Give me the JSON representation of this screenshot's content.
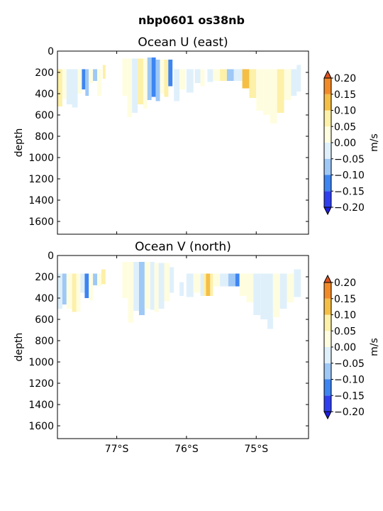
{
  "figure": {
    "suptitle": "nbp0601 os38nb"
  },
  "colors": {
    "levels": [
      -0.2,
      -0.15,
      -0.1,
      -0.05,
      0.0,
      0.05,
      0.1,
      0.15,
      0.2
    ],
    "bands": [
      "#2f3ff0",
      "#3d85f2",
      "#9ec8f6",
      "#dff0fb",
      "#fffde0",
      "#fdf0a8",
      "#f5be45",
      "#f38a28"
    ],
    "under": "#1e1ee0",
    "over": "#e0521e"
  },
  "chart_data": [
    {
      "type": "heatmap",
      "title": "Ocean U (east)",
      "xlabel": "",
      "ylabel": "depth",
      "xlim": [
        -77.85,
        -74.25
      ],
      "ylim": [
        1720,
        0
      ],
      "x_ticks": [
        -77,
        -76,
        -75
      ],
      "x_tick_labels": [
        "77°S",
        "76°S",
        "75°S"
      ],
      "y_ticks": [
        0,
        200,
        400,
        600,
        800,
        1000,
        1200,
        1400,
        1600
      ],
      "y_tick_labels": [
        "0",
        "200",
        "400",
        "600",
        "800",
        "1000",
        "1200",
        "1400",
        "1600"
      ],
      "colorbar": {
        "label": "m/s",
        "ticks": [
          "0.20",
          "0.15",
          "0.10",
          "0.05",
          "0.00",
          "−0.05",
          "−0.10",
          "−0.15",
          "−0.20"
        ]
      },
      "cells": [
        {
          "lon_min": -77.85,
          "lon_max": -77.78,
          "depth_min": 170,
          "depth_max": 520,
          "value": 0.08
        },
        {
          "lon_min": -77.78,
          "lon_max": -77.72,
          "depth_min": 170,
          "depth_max": 450,
          "value": 0.03
        },
        {
          "lon_min": -77.72,
          "lon_max": -77.64,
          "depth_min": 170,
          "depth_max": 500,
          "value": -0.03
        },
        {
          "lon_min": -77.64,
          "lon_max": -77.56,
          "depth_min": 170,
          "depth_max": 530,
          "value": -0.02
        },
        {
          "lon_min": -77.56,
          "lon_max": -77.5,
          "depth_min": 170,
          "depth_max": 400,
          "value": 0.02
        },
        {
          "lon_min": -77.5,
          "lon_max": -77.45,
          "depth_min": 170,
          "depth_max": 360,
          "value": -0.13
        },
        {
          "lon_min": -77.45,
          "lon_max": -77.4,
          "depth_min": 170,
          "depth_max": 420,
          "value": -0.08
        },
        {
          "lon_min": -77.4,
          "lon_max": -77.34,
          "depth_min": 170,
          "depth_max": 300,
          "value": 0.03
        },
        {
          "lon_min": -77.34,
          "lon_max": -77.28,
          "depth_min": 170,
          "depth_max": 280,
          "value": -0.08
        },
        {
          "lon_min": -77.28,
          "lon_max": -77.22,
          "depth_min": 170,
          "depth_max": 420,
          "value": 0.02
        },
        {
          "lon_min": -77.2,
          "lon_max": -77.16,
          "depth_min": 130,
          "depth_max": 260,
          "value": 0.07
        },
        {
          "lon_min": -76.92,
          "lon_max": -76.85,
          "depth_min": 70,
          "depth_max": 420,
          "value": 0.02
        },
        {
          "lon_min": -76.85,
          "lon_max": -76.78,
          "depth_min": 70,
          "depth_max": 620,
          "value": 0.04
        },
        {
          "lon_min": -76.78,
          "lon_max": -76.7,
          "depth_min": 70,
          "depth_max": 580,
          "value": -0.03
        },
        {
          "lon_min": -76.7,
          "lon_max": -76.62,
          "depth_min": 70,
          "depth_max": 500,
          "value": 0.08
        },
        {
          "lon_min": -76.62,
          "lon_max": -76.56,
          "depth_min": 70,
          "depth_max": 540,
          "value": 0.02
        },
        {
          "lon_min": -76.56,
          "lon_max": -76.5,
          "depth_min": 60,
          "depth_max": 460,
          "value": -0.08
        },
        {
          "lon_min": -76.5,
          "lon_max": -76.44,
          "depth_min": 60,
          "depth_max": 430,
          "value": -0.14
        },
        {
          "lon_min": -76.44,
          "lon_max": -76.38,
          "depth_min": 80,
          "depth_max": 470,
          "value": -0.06
        },
        {
          "lon_min": -76.38,
          "lon_max": -76.32,
          "depth_min": 80,
          "depth_max": 400,
          "value": 0.03
        },
        {
          "lon_min": -76.32,
          "lon_max": -76.26,
          "depth_min": 80,
          "depth_max": 430,
          "value": 0.07
        },
        {
          "lon_min": -76.26,
          "lon_max": -76.2,
          "depth_min": 80,
          "depth_max": 330,
          "value": -0.12
        },
        {
          "lon_min": -76.18,
          "lon_max": -76.1,
          "depth_min": 170,
          "depth_max": 470,
          "value": -0.03
        },
        {
          "lon_min": -76.1,
          "lon_max": -76.02,
          "depth_min": 170,
          "depth_max": 360,
          "value": 0.02
        },
        {
          "lon_min": -76.0,
          "lon_max": -75.9,
          "depth_min": 170,
          "depth_max": 390,
          "value": -0.03
        },
        {
          "lon_min": -75.88,
          "lon_max": -75.8,
          "depth_min": 170,
          "depth_max": 300,
          "value": -0.02
        },
        {
          "lon_min": -75.8,
          "lon_max": -75.74,
          "depth_min": 170,
          "depth_max": 330,
          "value": 0.02
        },
        {
          "lon_min": -75.7,
          "lon_max": -75.62,
          "depth_min": 170,
          "depth_max": 290,
          "value": -0.02
        },
        {
          "lon_min": -75.62,
          "lon_max": -75.52,
          "depth_min": 170,
          "depth_max": 280,
          "value": 0.03
        },
        {
          "lon_min": -75.52,
          "lon_max": -75.42,
          "depth_min": 170,
          "depth_max": 280,
          "value": 0.08
        },
        {
          "lon_min": -75.42,
          "lon_max": -75.32,
          "depth_min": 170,
          "depth_max": 280,
          "value": -0.08
        },
        {
          "lon_min": -75.32,
          "lon_max": -75.2,
          "depth_min": 170,
          "depth_max": 280,
          "value": -0.02
        },
        {
          "lon_min": -75.2,
          "lon_max": -75.1,
          "depth_min": 170,
          "depth_max": 350,
          "value": 0.13
        },
        {
          "lon_min": -75.1,
          "lon_max": -75.0,
          "depth_min": 170,
          "depth_max": 440,
          "value": 0.08
        },
        {
          "lon_min": -75.0,
          "lon_max": -74.9,
          "depth_min": 170,
          "depth_max": 560,
          "value": 0.03
        },
        {
          "lon_min": -74.9,
          "lon_max": -74.8,
          "depth_min": 170,
          "depth_max": 600,
          "value": 0.02
        },
        {
          "lon_min": -74.8,
          "lon_max": -74.7,
          "depth_min": 170,
          "depth_max": 680,
          "value": 0.04
        },
        {
          "lon_min": -74.7,
          "lon_max": -74.6,
          "depth_min": 170,
          "depth_max": 580,
          "value": 0.07
        },
        {
          "lon_min": -74.6,
          "lon_max": -74.5,
          "depth_min": 170,
          "depth_max": 460,
          "value": 0.02
        },
        {
          "lon_min": -74.5,
          "lon_max": -74.42,
          "depth_min": 170,
          "depth_max": 420,
          "value": -0.02
        },
        {
          "lon_min": -74.42,
          "lon_max": -74.36,
          "depth_min": 130,
          "depth_max": 380,
          "value": -0.03
        }
      ]
    },
    {
      "type": "heatmap",
      "title": "Ocean V (north)",
      "xlabel": "",
      "ylabel": "depth",
      "xlim": [
        -77.85,
        -74.25
      ],
      "ylim": [
        1720,
        0
      ],
      "x_ticks": [
        -77,
        -76,
        -75
      ],
      "x_tick_labels": [
        "77°S",
        "76°S",
        "75°S"
      ],
      "y_ticks": [
        0,
        200,
        400,
        600,
        800,
        1000,
        1200,
        1400,
        1600
      ],
      "y_tick_labels": [
        "0",
        "200",
        "400",
        "600",
        "800",
        "1000",
        "1200",
        "1400",
        "1600"
      ],
      "colorbar": {
        "label": "m/s",
        "ticks": [
          "0.20",
          "0.15",
          "0.10",
          "0.05",
          "0.00",
          "−0.05",
          "−0.10",
          "−0.15",
          "−0.20"
        ]
      },
      "cells": [
        {
          "lon_min": -77.85,
          "lon_max": -77.78,
          "depth_min": 170,
          "depth_max": 500,
          "value": -0.03
        },
        {
          "lon_min": -77.78,
          "lon_max": -77.72,
          "depth_min": 170,
          "depth_max": 460,
          "value": -0.06
        },
        {
          "lon_min": -77.72,
          "lon_max": -77.64,
          "depth_min": 170,
          "depth_max": 500,
          "value": 0.02
        },
        {
          "lon_min": -77.64,
          "lon_max": -77.58,
          "depth_min": 170,
          "depth_max": 530,
          "value": 0.07
        },
        {
          "lon_min": -77.58,
          "lon_max": -77.52,
          "depth_min": 170,
          "depth_max": 530,
          "value": 0.03
        },
        {
          "lon_min": -77.52,
          "lon_max": -77.46,
          "depth_min": 170,
          "depth_max": 350,
          "value": -0.03
        },
        {
          "lon_min": -77.46,
          "lon_max": -77.4,
          "depth_min": 170,
          "depth_max": 400,
          "value": -0.13
        },
        {
          "lon_min": -77.4,
          "lon_max": -77.34,
          "depth_min": 170,
          "depth_max": 420,
          "value": 0.02
        },
        {
          "lon_min": -77.34,
          "lon_max": -77.28,
          "depth_min": 170,
          "depth_max": 280,
          "value": -0.08
        },
        {
          "lon_min": -77.28,
          "lon_max": -77.22,
          "depth_min": 170,
          "depth_max": 290,
          "value": 0.03
        },
        {
          "lon_min": -77.22,
          "lon_max": -77.16,
          "depth_min": 130,
          "depth_max": 270,
          "value": 0.08
        },
        {
          "lon_min": -76.92,
          "lon_max": -76.84,
          "depth_min": 60,
          "depth_max": 400,
          "value": 0.03
        },
        {
          "lon_min": -76.84,
          "lon_max": -76.76,
          "depth_min": 60,
          "depth_max": 630,
          "value": 0.02
        },
        {
          "lon_min": -76.76,
          "lon_max": -76.68,
          "depth_min": 60,
          "depth_max": 520,
          "value": -0.03
        },
        {
          "lon_min": -76.68,
          "lon_max": -76.6,
          "depth_min": 60,
          "depth_max": 560,
          "value": -0.07
        },
        {
          "lon_min": -76.6,
          "lon_max": -76.52,
          "depth_min": 60,
          "depth_max": 500,
          "value": 0.02
        },
        {
          "lon_min": -76.52,
          "lon_max": -76.46,
          "depth_min": 60,
          "depth_max": 510,
          "value": -0.04
        },
        {
          "lon_min": -76.46,
          "lon_max": -76.4,
          "depth_min": 70,
          "depth_max": 530,
          "value": 0.03
        },
        {
          "lon_min": -76.4,
          "lon_max": -76.32,
          "depth_min": 70,
          "depth_max": 500,
          "value": -0.02
        },
        {
          "lon_min": -76.32,
          "lon_max": -76.24,
          "depth_min": 70,
          "depth_max": 430,
          "value": 0.02
        },
        {
          "lon_min": -76.24,
          "lon_max": -76.18,
          "depth_min": 110,
          "depth_max": 350,
          "value": -0.03
        },
        {
          "lon_min": -76.1,
          "lon_max": -76.04,
          "depth_min": 250,
          "depth_max": 380,
          "value": -0.02
        },
        {
          "lon_min": -76.0,
          "lon_max": -75.9,
          "depth_min": 170,
          "depth_max": 390,
          "value": -0.02
        },
        {
          "lon_min": -75.9,
          "lon_max": -75.8,
          "depth_min": 170,
          "depth_max": 350,
          "value": 0.02
        },
        {
          "lon_min": -75.8,
          "lon_max": -75.76,
          "depth_min": 170,
          "depth_max": 380,
          "value": -0.02
        },
        {
          "lon_min": -75.76,
          "lon_max": -75.72,
          "depth_min": 170,
          "depth_max": 380,
          "value": 0.08
        },
        {
          "lon_min": -75.72,
          "lon_max": -75.66,
          "depth_min": 170,
          "depth_max": 380,
          "value": 0.13
        },
        {
          "lon_min": -75.66,
          "lon_max": -75.62,
          "depth_min": 170,
          "depth_max": 380,
          "value": 0.08
        },
        {
          "lon_min": -75.62,
          "lon_max": -75.52,
          "depth_min": 170,
          "depth_max": 290,
          "value": 0.02
        },
        {
          "lon_min": -75.52,
          "lon_max": -75.4,
          "depth_min": 170,
          "depth_max": 290,
          "value": -0.03
        },
        {
          "lon_min": -75.4,
          "lon_max": -75.3,
          "depth_min": 170,
          "depth_max": 290,
          "value": -0.08
        },
        {
          "lon_min": -75.3,
          "lon_max": -75.24,
          "depth_min": 170,
          "depth_max": 290,
          "value": -0.13
        },
        {
          "lon_min": -75.24,
          "lon_max": -75.14,
          "depth_min": 170,
          "depth_max": 380,
          "value": 0.02
        },
        {
          "lon_min": -75.14,
          "lon_max": -75.04,
          "depth_min": 170,
          "depth_max": 440,
          "value": 0.03
        },
        {
          "lon_min": -75.04,
          "lon_max": -74.94,
          "depth_min": 170,
          "depth_max": 560,
          "value": -0.03
        },
        {
          "lon_min": -74.94,
          "lon_max": -74.84,
          "depth_min": 170,
          "depth_max": 600,
          "value": -0.02
        },
        {
          "lon_min": -74.84,
          "lon_max": -74.76,
          "depth_min": 170,
          "depth_max": 690,
          "value": -0.04
        },
        {
          "lon_min": -74.76,
          "lon_max": -74.66,
          "depth_min": 170,
          "depth_max": 580,
          "value": 0.02
        },
        {
          "lon_min": -74.66,
          "lon_max": -74.56,
          "depth_min": 170,
          "depth_max": 500,
          "value": -0.03
        },
        {
          "lon_min": -74.56,
          "lon_max": -74.46,
          "depth_min": 170,
          "depth_max": 440,
          "value": 0.03
        },
        {
          "lon_min": -74.46,
          "lon_max": -74.36,
          "depth_min": 130,
          "depth_max": 390,
          "value": -0.02
        }
      ]
    }
  ]
}
